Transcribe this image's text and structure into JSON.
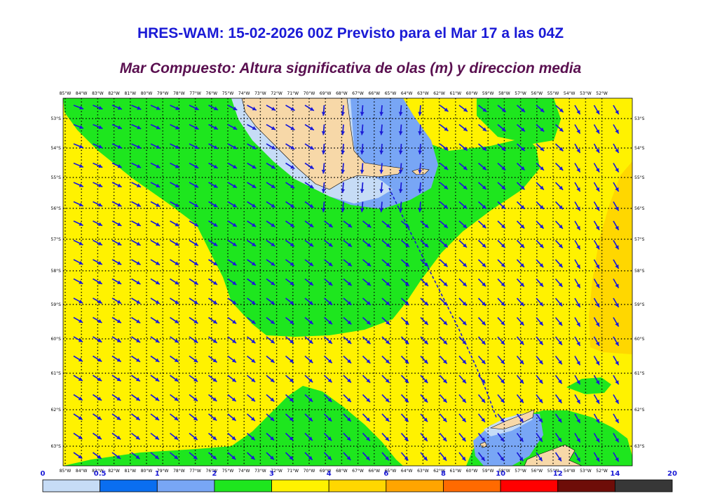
{
  "title": "HRES-WAM: 15-02-2026 00Z Previsto para el Mar 17 a las 04Z",
  "subtitle": "Mar Compuesto: Altura significativa de olas (m) y direccion media",
  "lon_labels": [
    "85°W",
    "84°W",
    "83°W",
    "82°W",
    "81°W",
    "80°W",
    "79°W",
    "78°W",
    "77°W",
    "76°W",
    "75°W",
    "74°W",
    "73°W",
    "72°W",
    "71°W",
    "70°W",
    "69°W",
    "68°W",
    "67°W",
    "66°W",
    "65°W",
    "64°W",
    "63°W",
    "62°W",
    "61°W",
    "60°W",
    "59°W",
    "58°W",
    "57°W",
    "56°W",
    "55°W",
    "54°W",
    "53°W",
    "52°W"
  ],
  "lat_labels": [
    "53°S",
    "54°S",
    "55°S",
    "56°S",
    "57°S",
    "58°S",
    "59°S",
    "60°S",
    "61°S",
    "62°S",
    "63°S"
  ],
  "colorbar": {
    "labels": [
      "0",
      "0.5",
      "1",
      "2",
      "3",
      "4",
      "6",
      "8",
      "10",
      "12",
      "14",
      "20"
    ],
    "colors": [
      "#c6dcf6",
      "#0a6ef0",
      "#78a6f5",
      "#1ee61e",
      "#fff200",
      "#ffd700",
      "#ffa500",
      "#ff6a00",
      "#ff0000",
      "#6e0d08",
      "#373737"
    ]
  },
  "colors": {
    "land": "#f7d8a8",
    "sea_lightblue": "#c6dcf6",
    "sea_blue": "#78a6f5",
    "green": "#1ee61e",
    "yellow": "#fff200",
    "gold": "#ffd700",
    "arrow": "#1a1ad6"
  }
}
